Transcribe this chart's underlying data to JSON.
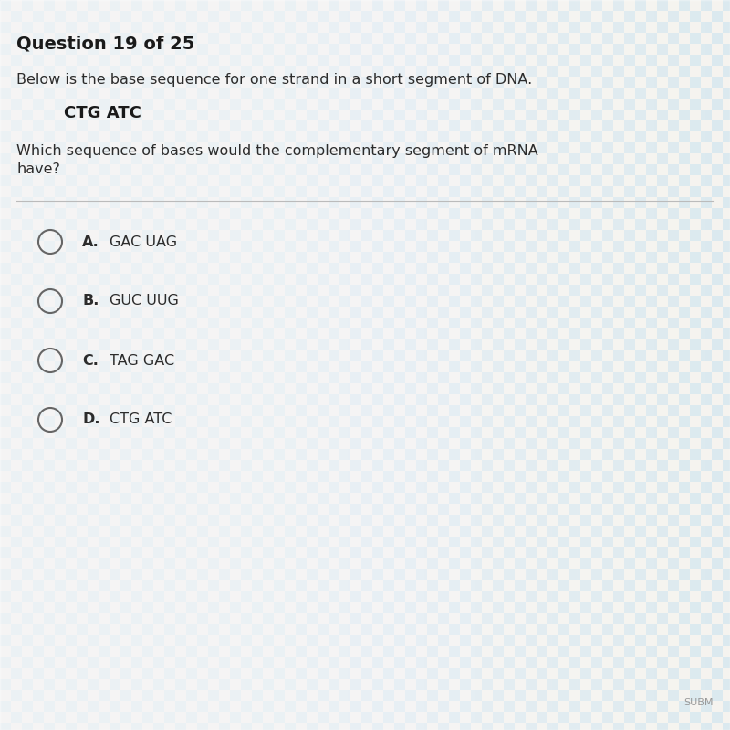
{
  "bg_cream": "#e8e2d8",
  "bg_blue": "#a8ccd8",
  "title": "Question 19 of 25",
  "title_fontsize": 14,
  "title_color": "#1a1a1a",
  "line1": "Below is the base sequence for one strand in a short segment of DNA.",
  "line1_fontsize": 11.5,
  "line1_color": "#2c2c2c",
  "dna_sequence": "CTG ATC",
  "dna_fontsize": 13,
  "dna_color": "#1a1a1a",
  "question_line1": "Which sequence of bases would the complementary segment of mRNA",
  "question_line2": "have?",
  "question_fontsize": 11.5,
  "question_color": "#2c2c2c",
  "divider_color": "#bbbbbb",
  "options": [
    {
      "letter": "A.",
      "text": "GAC UAG"
    },
    {
      "letter": "B.",
      "text": "GUC UUG"
    },
    {
      "letter": "C.",
      "text": "TAG GAC"
    },
    {
      "letter": "D.",
      "text": "CTG ATC"
    }
  ],
  "option_fontsize": 11.5,
  "option_color": "#2c2c2c",
  "circle_color": "#666666",
  "submit_text": "SUBM",
  "submit_color": "#999999",
  "submit_fontsize": 8
}
